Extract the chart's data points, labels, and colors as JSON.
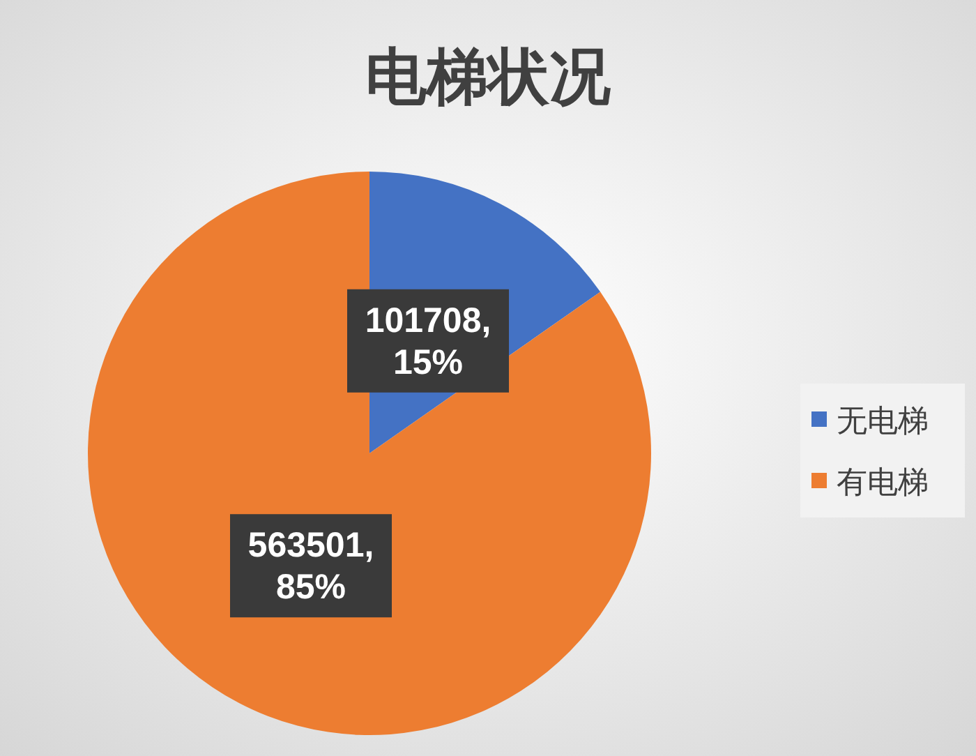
{
  "chart_data": {
    "type": "pie",
    "title": "电梯状况",
    "categories": [
      "无电梯",
      "有电梯"
    ],
    "values": [
      101708,
      563501
    ],
    "colors": [
      "#4472c4",
      "#ed7d31"
    ],
    "value_labels": [
      "101708,\n15%",
      "563501,\n85%"
    ],
    "legend": "right"
  }
}
